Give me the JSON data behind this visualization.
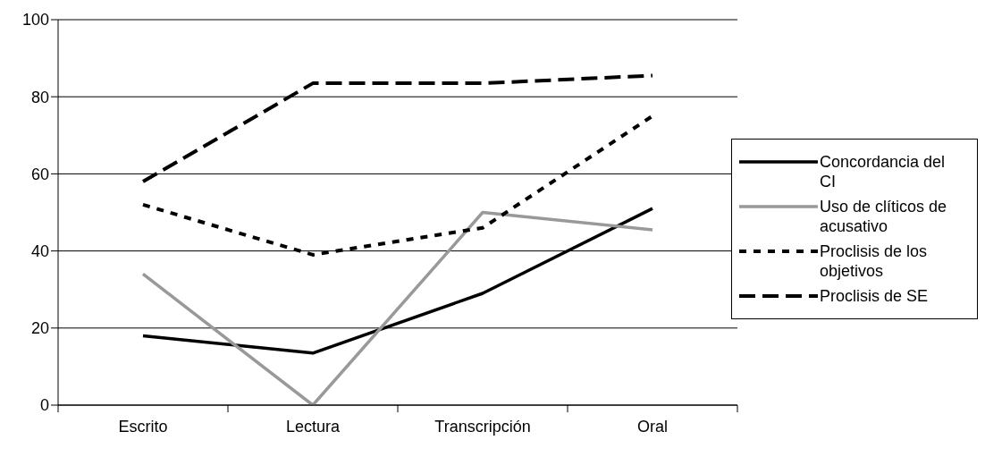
{
  "chart_data": {
    "type": "line",
    "categories": [
      "Escrito",
      "Lectura",
      "Transcripción",
      "Oral"
    ],
    "series": [
      {
        "name": "Concordancia del CI",
        "color": "#000000",
        "line_style": "solid",
        "values": [
          18,
          13.5,
          29,
          51
        ]
      },
      {
        "name": "Uso de clíticos de acusativo",
        "color": "#999999",
        "line_style": "solid",
        "values": [
          34,
          0,
          50,
          45.5
        ]
      },
      {
        "name": "Proclisis de los objetivos",
        "color": "#000000",
        "line_style": "dotted",
        "values": [
          52,
          39,
          46,
          75
        ]
      },
      {
        "name": "Proclisis de SE",
        "color": "#000000",
        "line_style": "dashed",
        "values": [
          58,
          83.5,
          83.5,
          85.5
        ]
      }
    ],
    "ylim": [
      0,
      100
    ],
    "yticks": [
      0,
      20,
      40,
      60,
      80,
      100
    ],
    "grid": "y",
    "legend": "right",
    "marker": "none"
  }
}
